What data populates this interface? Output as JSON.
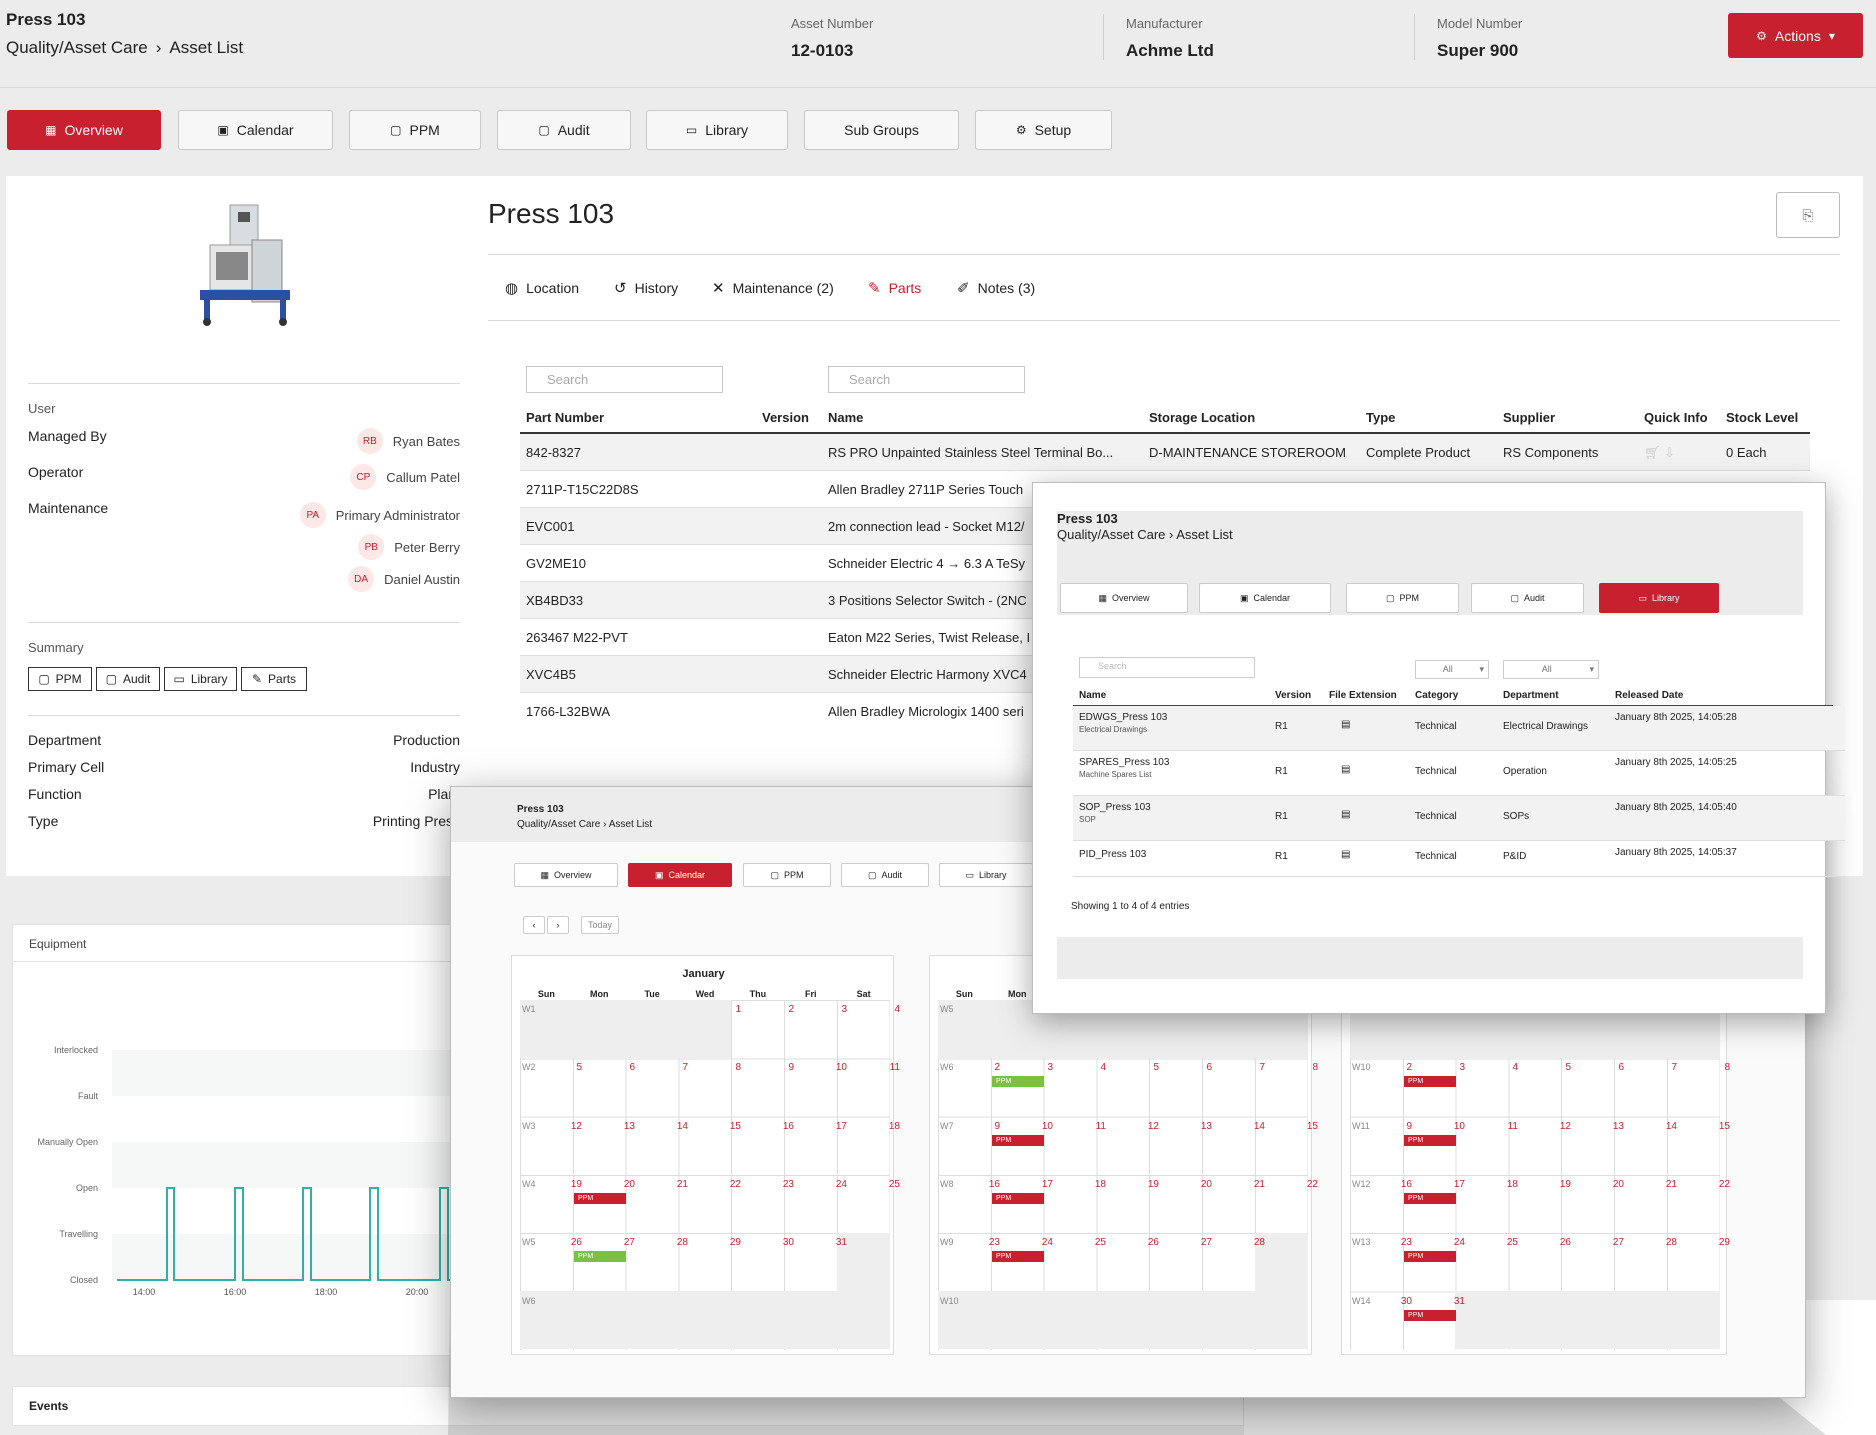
{
  "header": {
    "title": "Press 103",
    "breadcrumb": [
      "Quality/Asset Care",
      "Asset List"
    ],
    "asset_number_label": "Asset Number",
    "asset_number": "12-0103",
    "manufacturer_label": "Manufacturer",
    "manufacturer": "Achme Ltd",
    "model_label": "Model Number",
    "model": "Super 900",
    "actions_label": "Actions"
  },
  "tabs": [
    "Overview",
    "Calendar",
    "PPM",
    "Audit",
    "Library",
    "Sub Groups",
    "Setup"
  ],
  "asset": {
    "name": "Press 103",
    "user_heading": "User",
    "managed_by_label": "Managed By",
    "managed_by": {
      "initials": "RB",
      "name": "Ryan Bates"
    },
    "operator_label": "Operator",
    "operator": {
      "initials": "CP",
      "name": "Callum Patel"
    },
    "maintenance_label": "Maintenance",
    "maintenance": [
      {
        "initials": "PA",
        "name": "Primary Administrator"
      },
      {
        "initials": "PB",
        "name": "Peter Berry"
      },
      {
        "initials": "DA",
        "name": "Daniel Austin"
      }
    ],
    "summary_heading": "Summary",
    "summary_buttons": [
      "PPM",
      "Audit",
      "Library",
      "Parts"
    ],
    "details": [
      {
        "label": "Department",
        "value": "Production"
      },
      {
        "label": "Primary Cell",
        "value": "Industry"
      },
      {
        "label": "Function",
        "value": "Plant"
      },
      {
        "label": "Type",
        "value": "Printing Press"
      }
    ]
  },
  "subtabs": [
    "Location",
    "History",
    "Maintenance (2)",
    "Parts",
    "Notes (3)"
  ],
  "parts": {
    "search_placeholder": "Search",
    "columns": [
      "Part Number",
      "Version",
      "Name",
      "Storage Location",
      "Type",
      "Supplier",
      "Quick Info",
      "Stock Level"
    ],
    "rows": [
      {
        "part": "842-8327",
        "name": "RS PRO Unpainted Stainless Steel Terminal Bo...",
        "storage": "D-MAINTENANCE STOREROOM",
        "type": "Complete Product",
        "supplier": "RS Components",
        "stock": "0 Each"
      },
      {
        "part": "2711P-T15C22D8S",
        "name": "Allen Bradley 2711P Series Touch"
      },
      {
        "part": "EVC001",
        "name": "2m connection lead - Socket M12/"
      },
      {
        "part": "GV2ME10",
        "name": "Schneider Electric 4 → 6.3 A TeSy"
      },
      {
        "part": "XB4BD33",
        "name": "3 Positions Selector Switch - (2NC"
      },
      {
        "part": "263467 M22-PVT",
        "name": "Eaton M22 Series, Twist Release, I"
      },
      {
        "part": "XVC4B5",
        "name": "Schneider Electric Harmony XVC4"
      },
      {
        "part": "1766-L32BWA",
        "name": "Allen Bradley Micrologix 1400 seri"
      }
    ]
  },
  "equipment": {
    "title": "Equipment",
    "states": [
      "Interlocked",
      "Fault",
      "Manually Open",
      "Open",
      "Travelling",
      "Closed"
    ],
    "times": [
      "14:00",
      "16:00",
      "18:00",
      "20:00"
    ]
  },
  "events_title": "Events",
  "calendar_shot": {
    "title": "Press 103",
    "crumb": [
      "Quality/Asset Care",
      "Asset List"
    ],
    "tabs": [
      "Overview",
      "Calendar",
      "PPM",
      "Audit",
      "Library"
    ],
    "today": "Today",
    "month": "January",
    "weekdays": [
      "Sun",
      "Mon",
      "Tue",
      "Wed",
      "Thu",
      "Fri",
      "Sat"
    ],
    "weekdays2": [
      "Sun",
      "Mon"
    ],
    "ppm": "PPM"
  },
  "library_shot": {
    "title": "Press 103",
    "crumb": [
      "Quality/Asset Care",
      "Asset List"
    ],
    "tabs": [
      "Overview",
      "Calendar",
      "PPM",
      "Audit",
      "Library"
    ],
    "search_placeholder": "Search",
    "filter_all": "All",
    "columns": [
      "Name",
      "Version",
      "File Extension",
      "Category",
      "Department",
      "Released Date"
    ],
    "rows": [
      {
        "name": "EDWGS_Press 103",
        "sub": "Electrical Drawings",
        "version": "R1",
        "category": "Technical",
        "department": "Electrical Drawings",
        "date": "January 8th 2025, 14:05:28"
      },
      {
        "name": "SPARES_Press 103",
        "sub": "Machine Spares List",
        "version": "R1",
        "category": "Technical",
        "department": "Operation",
        "date": "January 8th 2025, 14:05:25"
      },
      {
        "name": "SOP_Press 103",
        "sub": "SOP",
        "version": "R1",
        "category": "Technical",
        "department": "SOPs",
        "date": "January 8th 2025, 14:05:40"
      },
      {
        "name": "PID_Press 103",
        "sub": "",
        "version": "R1",
        "category": "Technical",
        "department": "P&ID",
        "date": "January 8th 2025, 14:05:37"
      }
    ],
    "footer": "Showing 1 to 4 of 4 entries"
  }
}
